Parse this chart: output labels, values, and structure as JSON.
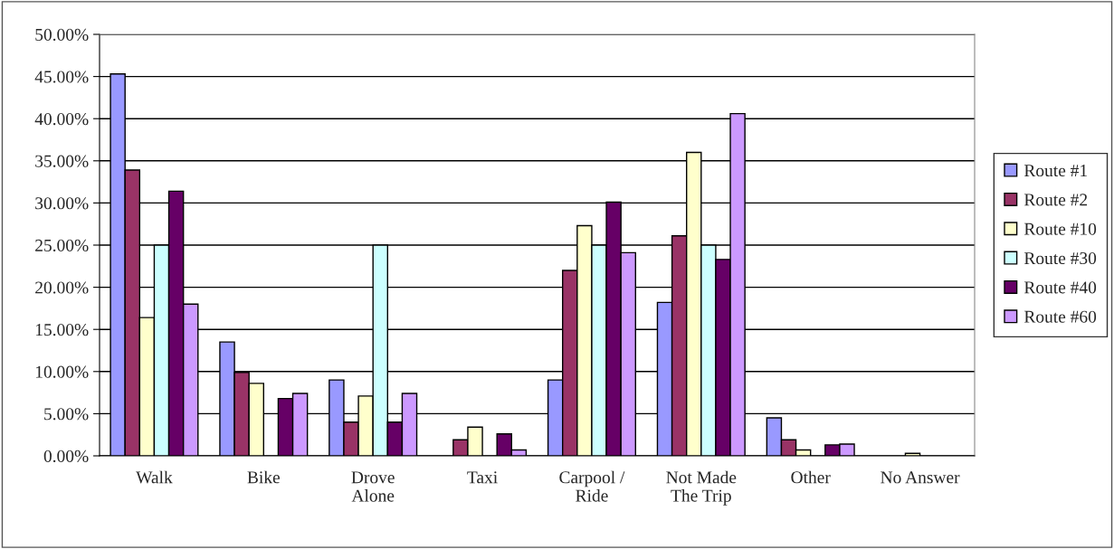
{
  "chart_data": {
    "type": "bar",
    "categories": [
      "Walk",
      "Bike",
      "Drove\nAlone",
      "Taxi",
      "Carpool /\nRide",
      "Not Made\nThe Trip",
      "Other",
      "No Answer"
    ],
    "series": [
      {
        "name": "Route #1",
        "color": "#9999ff",
        "values": [
          45.3,
          13.5,
          9.0,
          0,
          9.0,
          18.2,
          4.5,
          0
        ]
      },
      {
        "name": "Route #2",
        "color": "#993366",
        "values": [
          33.9,
          9.9,
          4.0,
          1.9,
          22.0,
          26.1,
          1.9,
          0
        ]
      },
      {
        "name": "Route #10",
        "color": "#ffffcc",
        "values": [
          16.4,
          8.6,
          7.1,
          3.4,
          27.3,
          36.0,
          0.7,
          0.3
        ]
      },
      {
        "name": "Route #30",
        "color": "#ccffff",
        "values": [
          25.0,
          0,
          25.0,
          0,
          25.0,
          25.0,
          0,
          0
        ]
      },
      {
        "name": "Route #40",
        "color": "#660066",
        "values": [
          31.4,
          6.8,
          4.0,
          2.6,
          30.1,
          23.3,
          1.3,
          0
        ]
      },
      {
        "name": "Route #60",
        "color": "#cc99ff",
        "values": [
          18.0,
          7.4,
          7.4,
          0.7,
          24.1,
          40.6,
          1.4,
          0
        ]
      }
    ],
    "ylim": [
      0,
      50
    ],
    "yticks": [
      {
        "value": 0,
        "label": "0.00%"
      },
      {
        "value": 5,
        "label": "5.00%"
      },
      {
        "value": 10,
        "label": "10.00%"
      },
      {
        "value": 15,
        "label": "15.00%"
      },
      {
        "value": 20,
        "label": "20.00%"
      },
      {
        "value": 25,
        "label": "25.00%"
      },
      {
        "value": 30,
        "label": "30.00%"
      },
      {
        "value": 35,
        "label": "35.00%"
      },
      {
        "value": 40,
        "label": "40.00%"
      },
      {
        "value": 45,
        "label": "45.00%"
      },
      {
        "value": 50,
        "label": "50.00%"
      }
    ],
    "grid": "y",
    "legend": "right"
  }
}
